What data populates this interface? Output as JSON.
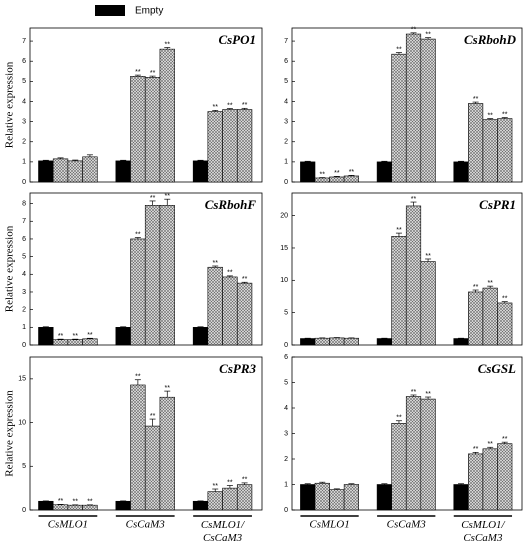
{
  "chart_data": [
    {
      "type": "bar",
      "title": "CsPO1",
      "ylabel": "Relative expression",
      "ylim": [
        0,
        7.65
      ],
      "yticks": [
        0,
        1,
        2,
        3,
        4,
        5,
        6,
        7
      ],
      "series": [
        {
          "name": "Empty",
          "color": "#000000",
          "values": [
            1.05,
            1.05,
            1.05
          ],
          "errors": [
            0.03,
            0.03,
            0.03
          ]
        },
        {
          "color": "#a6a6a6",
          "hatch": true,
          "values": [
            1.15,
            5.25,
            3.5
          ],
          "errors": [
            0.05,
            0.06,
            0.06
          ],
          "labels": [
            null,
            "**",
            "**"
          ]
        },
        {
          "color": "#a6a6a6",
          "hatch": true,
          "values": [
            1.05,
            5.2,
            3.6
          ],
          "errors": [
            0.04,
            0.06,
            0.05
          ],
          "labels": [
            null,
            "**",
            "**"
          ]
        },
        {
          "color": "#a6a6a6",
          "hatch": true,
          "values": [
            1.25,
            6.6,
            3.6
          ],
          "errors": [
            0.1,
            0.08,
            0.06
          ],
          "labels": [
            null,
            "**",
            "**"
          ]
        }
      ]
    },
    {
      "type": "bar",
      "title": "CsRbohD",
      "ylim": [
        0,
        7.65
      ],
      "yticks": [
        0,
        1,
        2,
        3,
        4,
        5,
        6,
        7
      ],
      "series": [
        {
          "color": "#000000",
          "values": [
            1.0,
            1.0,
            1.0
          ],
          "errors": [
            0.03,
            0.03,
            0.03
          ]
        },
        {
          "color": "#a6a6a6",
          "hatch": true,
          "values": [
            0.2,
            6.35,
            3.9
          ],
          "errors": [
            0.02,
            0.08,
            0.07
          ],
          "labels": [
            "**",
            "**",
            "**"
          ]
        },
        {
          "color": "#a6a6a6",
          "hatch": true,
          "values": [
            0.25,
            7.35,
            3.1
          ],
          "errors": [
            0.03,
            0.06,
            0.05
          ],
          "labels": [
            "**",
            "**",
            "**"
          ]
        },
        {
          "color": "#a6a6a6",
          "hatch": true,
          "values": [
            0.3,
            7.1,
            3.15
          ],
          "errors": [
            0.03,
            0.07,
            0.05
          ],
          "labels": [
            "**",
            "**",
            "**"
          ]
        }
      ]
    },
    {
      "type": "bar",
      "title": "CsRbohF",
      "ylabel": "Relative expression",
      "ylim": [
        0,
        8.6
      ],
      "yticks": [
        0,
        1,
        2,
        3,
        4,
        5,
        6,
        7,
        8
      ],
      "series": [
        {
          "color": "#000000",
          "values": [
            1.0,
            1.0,
            1.0
          ],
          "errors": [
            0.03,
            0.03,
            0.03
          ]
        },
        {
          "color": "#a6a6a6",
          "hatch": true,
          "values": [
            0.3,
            6.0,
            4.4
          ],
          "errors": [
            0.03,
            0.08,
            0.07
          ],
          "labels": [
            "**",
            "**",
            "**"
          ]
        },
        {
          "color": "#a6a6a6",
          "hatch": true,
          "values": [
            0.3,
            7.9,
            3.85
          ],
          "errors": [
            0.03,
            0.25,
            0.06
          ],
          "labels": [
            "**",
            "**",
            "**"
          ]
        },
        {
          "color": "#a6a6a6",
          "hatch": true,
          "values": [
            0.35,
            7.9,
            3.5
          ],
          "errors": [
            0.03,
            0.35,
            0.05
          ],
          "labels": [
            "**",
            "**",
            "**"
          ]
        }
      ]
    },
    {
      "type": "bar",
      "title": "CsPR1",
      "ylim": [
        0,
        23.5
      ],
      "yticks": [
        0,
        5,
        10,
        15,
        20
      ],
      "series": [
        {
          "color": "#000000",
          "values": [
            1.0,
            1.0,
            1.0
          ],
          "errors": [
            0.05,
            0.05,
            0.05
          ]
        },
        {
          "color": "#a6a6a6",
          "hatch": true,
          "values": [
            1.05,
            16.8,
            8.2
          ],
          "errors": [
            0.05,
            0.5,
            0.3
          ],
          "labels": [
            null,
            "**",
            "**"
          ]
        },
        {
          "color": "#a6a6a6",
          "hatch": true,
          "values": [
            1.1,
            21.5,
            8.8
          ],
          "errors": [
            0.05,
            0.6,
            0.3
          ],
          "labels": [
            null,
            "**",
            "**"
          ]
        },
        {
          "color": "#a6a6a6",
          "hatch": true,
          "values": [
            1.05,
            12.9,
            6.5
          ],
          "errors": [
            0.05,
            0.4,
            0.2
          ],
          "labels": [
            null,
            "**",
            "**"
          ]
        }
      ]
    },
    {
      "type": "bar",
      "title": "CsPR3",
      "ylabel": "Relative expression",
      "ylim": [
        0,
        17.5
      ],
      "yticks": [
        0,
        5,
        10,
        15
      ],
      "categories": [
        "CsMLO1",
        "CsCaM3",
        "CsMLO1/CsCaM3"
      ],
      "series": [
        {
          "color": "#000000",
          "values": [
            1.0,
            1.0,
            1.0
          ],
          "errors": [
            0.04,
            0.04,
            0.04
          ]
        },
        {
          "color": "#a6a6a6",
          "hatch": true,
          "values": [
            0.6,
            14.3,
            2.1
          ],
          "errors": [
            0.04,
            0.6,
            0.3
          ],
          "labels": [
            "**",
            "**",
            "**"
          ]
        },
        {
          "color": "#a6a6a6",
          "hatch": true,
          "values": [
            0.55,
            9.6,
            2.5
          ],
          "errors": [
            0.04,
            0.8,
            0.3
          ],
          "labels": [
            "**",
            "**",
            "**"
          ]
        },
        {
          "color": "#a6a6a6",
          "hatch": true,
          "values": [
            0.55,
            12.9,
            2.9
          ],
          "errors": [
            0.04,
            0.7,
            0.2
          ],
          "labels": [
            "**",
            "**",
            "**"
          ]
        }
      ]
    },
    {
      "type": "bar",
      "title": "CsGSL",
      "ylim": [
        0,
        6
      ],
      "yticks": [
        0,
        1,
        2,
        3,
        4,
        5,
        6
      ],
      "categories": [
        "CsMLO1",
        "CsCaM3",
        "CsMLO1/CsCaM3"
      ],
      "series": [
        {
          "color": "#000000",
          "values": [
            1.0,
            1.0,
            1.0
          ],
          "errors": [
            0.03,
            0.03,
            0.03
          ]
        },
        {
          "color": "#a6a6a6",
          "hatch": true,
          "values": [
            1.05,
            3.4,
            2.2
          ],
          "errors": [
            0.04,
            0.1,
            0.06
          ],
          "labels": [
            null,
            "**",
            "**"
          ]
        },
        {
          "color": "#a6a6a6",
          "hatch": true,
          "values": [
            0.8,
            4.45,
            2.4
          ],
          "errors": [
            0.03,
            0.06,
            0.06
          ],
          "labels": [
            null,
            "**",
            "**"
          ]
        },
        {
          "color": "#a6a6a6",
          "hatch": true,
          "values": [
            1.0,
            4.35,
            2.6
          ],
          "errors": [
            0.03,
            0.08,
            0.06
          ],
          "labels": [
            null,
            "**",
            "**"
          ]
        }
      ]
    }
  ]
}
